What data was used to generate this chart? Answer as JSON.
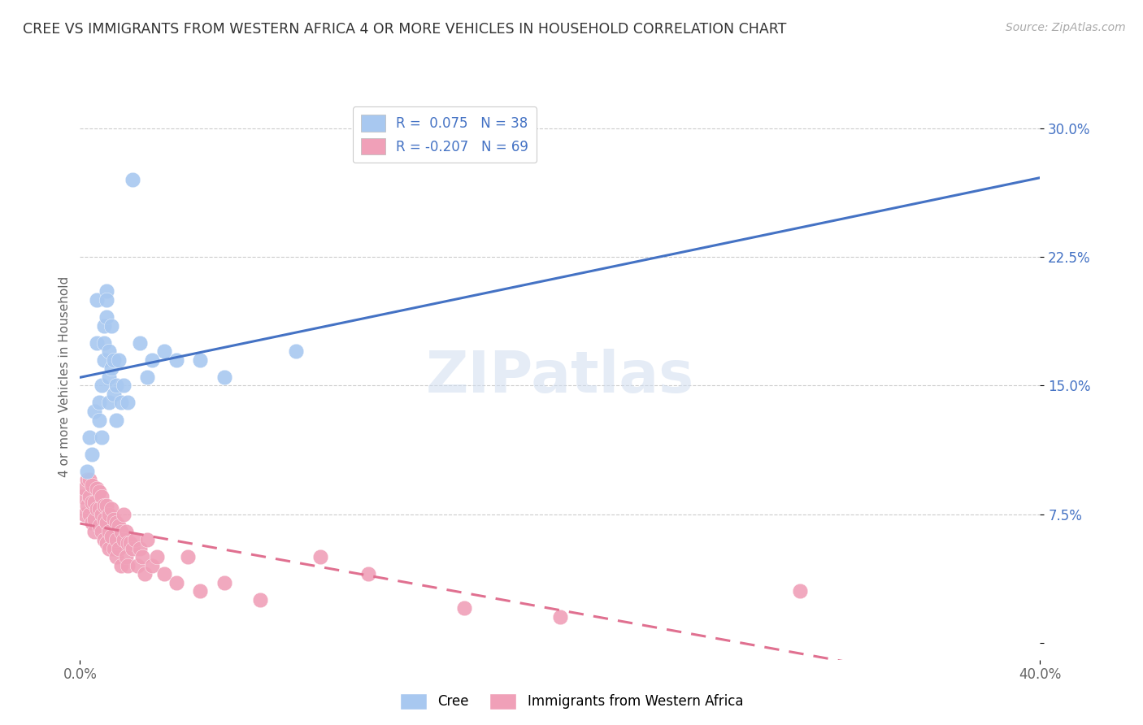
{
  "title": "CREE VS IMMIGRANTS FROM WESTERN AFRICA 4 OR MORE VEHICLES IN HOUSEHOLD CORRELATION CHART",
  "source": "Source: ZipAtlas.com",
  "ylabel": "4 or more Vehicles in Household",
  "xmin": 0.0,
  "xmax": 0.4,
  "ymin": -0.01,
  "ymax": 0.32,
  "yticks": [
    0.0,
    0.075,
    0.15,
    0.225,
    0.3
  ],
  "ytick_labels": [
    "",
    "7.5%",
    "15.0%",
    "22.5%",
    "30.0%"
  ],
  "legend_cree_R": " 0.075",
  "legend_cree_N": "38",
  "legend_imm_R": "-0.207",
  "legend_imm_N": "69",
  "cree_color": "#a8c8f0",
  "imm_color": "#f0a0b8",
  "cree_line_color": "#4472c4",
  "imm_line_color": "#e07090",
  "watermark": "ZIPatlas",
  "cree_x": [
    0.003,
    0.004,
    0.005,
    0.006,
    0.007,
    0.007,
    0.008,
    0.008,
    0.009,
    0.009,
    0.01,
    0.01,
    0.01,
    0.011,
    0.011,
    0.011,
    0.012,
    0.012,
    0.012,
    0.013,
    0.013,
    0.014,
    0.014,
    0.015,
    0.015,
    0.016,
    0.017,
    0.018,
    0.02,
    0.022,
    0.025,
    0.028,
    0.03,
    0.035,
    0.04,
    0.05,
    0.06,
    0.09
  ],
  "cree_y": [
    0.1,
    0.12,
    0.11,
    0.135,
    0.2,
    0.175,
    0.14,
    0.13,
    0.15,
    0.12,
    0.185,
    0.175,
    0.165,
    0.205,
    0.2,
    0.19,
    0.17,
    0.155,
    0.14,
    0.185,
    0.16,
    0.165,
    0.145,
    0.15,
    0.13,
    0.165,
    0.14,
    0.15,
    0.14,
    0.27,
    0.175,
    0.155,
    0.165,
    0.17,
    0.165,
    0.165,
    0.155,
    0.17
  ],
  "imm_x": [
    0.001,
    0.002,
    0.002,
    0.003,
    0.003,
    0.004,
    0.004,
    0.004,
    0.005,
    0.005,
    0.005,
    0.006,
    0.006,
    0.006,
    0.007,
    0.007,
    0.008,
    0.008,
    0.008,
    0.009,
    0.009,
    0.009,
    0.01,
    0.01,
    0.01,
    0.011,
    0.011,
    0.011,
    0.012,
    0.012,
    0.012,
    0.013,
    0.013,
    0.014,
    0.014,
    0.015,
    0.015,
    0.015,
    0.016,
    0.016,
    0.017,
    0.017,
    0.018,
    0.018,
    0.019,
    0.019,
    0.02,
    0.02,
    0.021,
    0.022,
    0.023,
    0.024,
    0.025,
    0.026,
    0.027,
    0.028,
    0.03,
    0.032,
    0.035,
    0.04,
    0.045,
    0.05,
    0.06,
    0.075,
    0.1,
    0.12,
    0.16,
    0.2,
    0.3
  ],
  "imm_y": [
    0.085,
    0.09,
    0.075,
    0.08,
    0.095,
    0.075,
    0.085,
    0.095,
    0.07,
    0.082,
    0.092,
    0.072,
    0.082,
    0.065,
    0.078,
    0.09,
    0.068,
    0.078,
    0.088,
    0.065,
    0.075,
    0.085,
    0.072,
    0.08,
    0.06,
    0.07,
    0.08,
    0.058,
    0.065,
    0.075,
    0.055,
    0.078,
    0.062,
    0.072,
    0.055,
    0.07,
    0.06,
    0.05,
    0.068,
    0.055,
    0.065,
    0.045,
    0.06,
    0.075,
    0.05,
    0.065,
    0.058,
    0.045,
    0.058,
    0.055,
    0.06,
    0.045,
    0.055,
    0.05,
    0.04,
    0.06,
    0.045,
    0.05,
    0.04,
    0.035,
    0.05,
    0.03,
    0.035,
    0.025,
    0.05,
    0.04,
    0.02,
    0.015,
    0.03
  ]
}
